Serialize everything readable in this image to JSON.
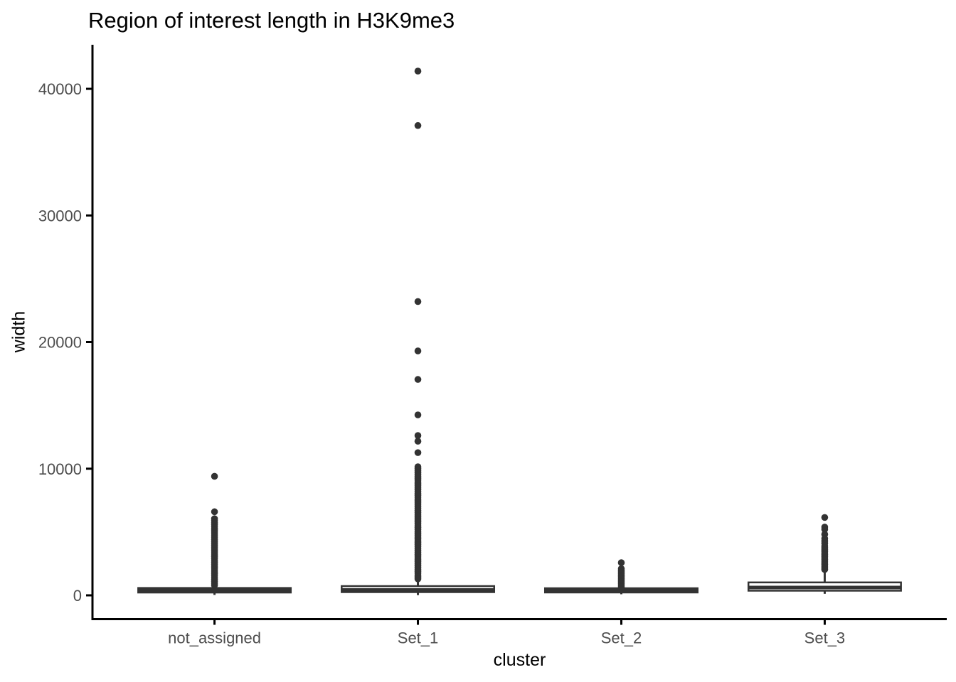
{
  "style": {
    "background": "#ffffff",
    "box_color": "#333333",
    "axis_color": "#000000",
    "tick_label_color": "#4d4d4d",
    "title_color": "#000000"
  },
  "chart_data": {
    "type": "boxplot",
    "title": "Region of interest length in H3K9me3",
    "xlabel": "cluster",
    "ylabel": "width",
    "categories": [
      "not_assigned",
      "Set_1",
      "Set_2",
      "Set_3"
    ],
    "y_ticks": [
      0,
      10000,
      20000,
      30000,
      40000
    ],
    "ylim": [
      -1880,
      43480
    ],
    "grid": false,
    "legend": false,
    "series": [
      {
        "name": "not_assigned",
        "q1": 220,
        "median": 390,
        "q3": 580,
        "whisker_low": 30,
        "whisker_high": 1130,
        "outliers": [
          9400,
          6600,
          6050,
          5900,
          5750,
          5600,
          5450,
          5300,
          5150,
          5000,
          4850,
          4700,
          4550,
          4400,
          4250,
          4100,
          3950,
          3800,
          3650,
          3500,
          3350,
          3200,
          3050,
          2900,
          2750,
          2600,
          2450,
          2300,
          2150,
          2000,
          1850,
          1700,
          1550,
          1400,
          1250,
          1100,
          950,
          800
        ]
      },
      {
        "name": "Set_1",
        "q1": 252,
        "median": 430,
        "q3": 730,
        "whisker_low": 15,
        "whisker_high": 1445,
        "outliers": [
          41400,
          37100,
          23200,
          19300,
          17050,
          14250,
          12620,
          12170,
          11270,
          10150,
          10000,
          9850,
          9700,
          9550,
          9400,
          9250,
          9100,
          8950,
          8800,
          8650,
          8500,
          8350,
          8200,
          8050,
          7900,
          7750,
          7600,
          7450,
          7300,
          7150,
          7000,
          6850,
          6700,
          6550,
          6400,
          6250,
          6100,
          5950,
          5800,
          5650,
          5500,
          5350,
          5200,
          5050,
          4900,
          4750,
          4600,
          4450,
          4300,
          4150,
          4000,
          3850,
          3700,
          3550,
          3400,
          3250,
          3100,
          2950,
          2800,
          2650,
          2500,
          2350,
          2200,
          2050,
          1900,
          1750,
          1600,
          1450,
          1300
        ]
      },
      {
        "name": "Set_2",
        "q1": 225,
        "median": 390,
        "q3": 560,
        "whisker_low": 85,
        "whisker_high": 1065,
        "outliers": [
          2580,
          2100,
          1970,
          1840,
          1710,
          1580,
          1450,
          1320,
          1190,
          1060,
          930,
          800,
          670
        ]
      },
      {
        "name": "Set_3",
        "q1": 365,
        "median": 620,
        "q3": 1020,
        "whisker_low": 120,
        "whisker_high": 1960,
        "outliers": [
          6150,
          5390,
          5220,
          4820,
          4490,
          4300,
          4100,
          3900,
          3750,
          3600,
          3470,
          3340,
          3210,
          3080,
          2950,
          2820,
          2690,
          2560,
          2430,
          2300,
          2170,
          2040
        ]
      }
    ]
  }
}
